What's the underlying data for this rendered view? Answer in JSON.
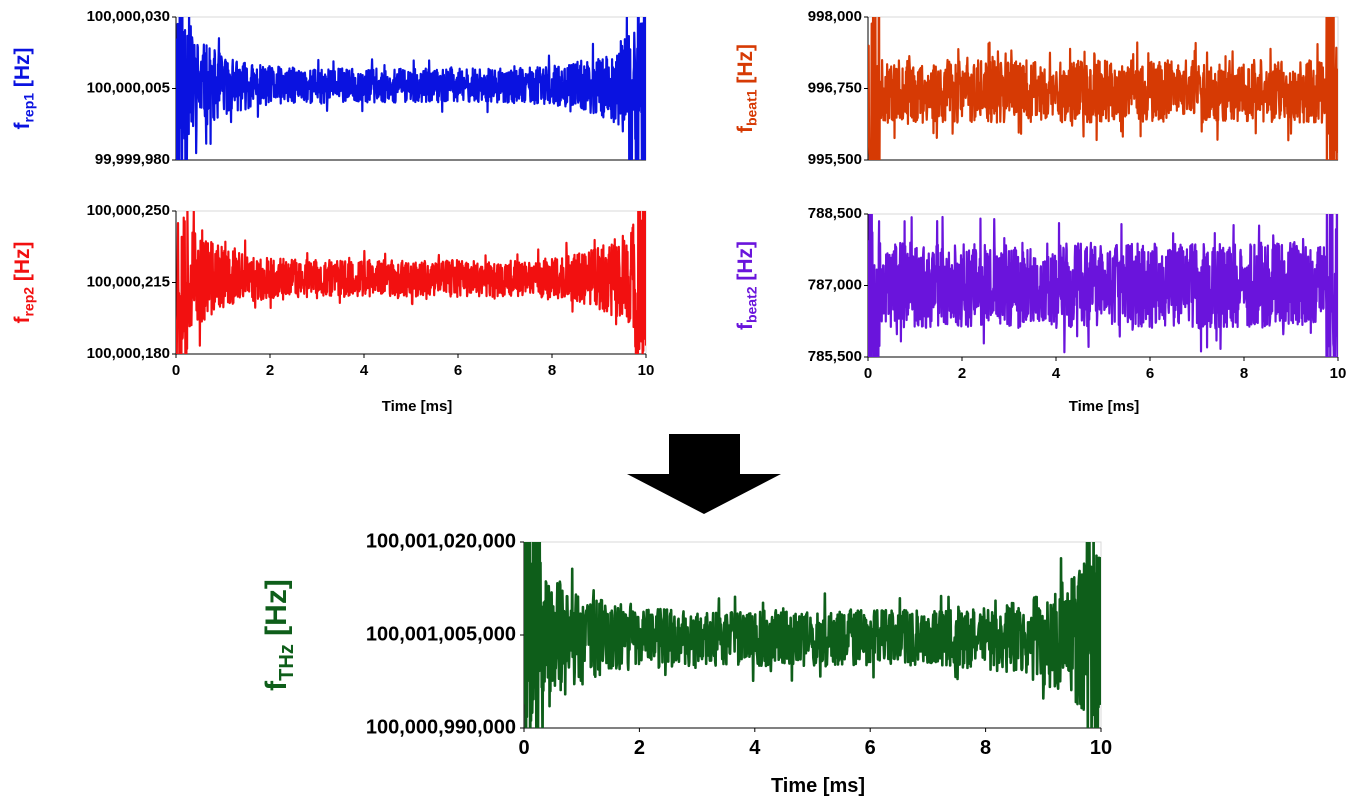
{
  "figure": {
    "arrow_color": "#000000"
  },
  "chart_data": [
    {
      "id": "frep1",
      "type": "line",
      "xlabel": "",
      "ylabel": {
        "main": "f",
        "sub": "rep1",
        "unit": " [Hz]"
      },
      "color": "#0a12e0",
      "xlim": [
        0,
        10
      ],
      "ylim": [
        99999980,
        100000030
      ],
      "y_ticks": [
        99999980,
        100000005,
        100000030
      ],
      "y_tick_labels": [
        "99,999,980",
        "100,000,005",
        "100,000,030"
      ],
      "x_tick_labels": [],
      "center": 100000006,
      "noise_edge": 25,
      "noise_mid": 6,
      "seed": 11
    },
    {
      "id": "fbeat1",
      "type": "line",
      "xlabel": "",
      "ylabel": {
        "main": "f",
        "sub": "beat1",
        "unit": " [Hz]"
      },
      "color": "#d63a04",
      "xlim": [
        0,
        10
      ],
      "ylim": [
        995500,
        998000
      ],
      "y_ticks": [
        995500,
        996750,
        998000
      ],
      "y_tick_labels": [
        "995,500",
        "996,750",
        "998,000"
      ],
      "x_tick_labels": [],
      "center": 996700,
      "noise_edge": 550,
      "noise_mid": 550,
      "seed": 23
    },
    {
      "id": "frep2",
      "type": "line",
      "xlabel": "Time [ms]",
      "ylabel": {
        "main": "f",
        "sub": "rep2",
        "unit": " [Hz]"
      },
      "color": "#f21010",
      "xlim": [
        0,
        10
      ],
      "ylim": [
        100000180,
        100000250
      ],
      "y_ticks": [
        100000180,
        100000215,
        100000250
      ],
      "y_tick_labels": [
        "100,000,180",
        "100,000,215",
        "100,000,250"
      ],
      "x_tick_labels": [
        "0",
        "2",
        "4",
        "6",
        "8",
        "10"
      ],
      "center": 100000217,
      "noise_edge": 35,
      "noise_mid": 9,
      "seed": 37
    },
    {
      "id": "fbeat2",
      "type": "line",
      "xlabel": "Time [ms]",
      "ylabel": {
        "main": "f",
        "sub": "beat2",
        "unit": " [Hz]"
      },
      "color": "#6a14dc",
      "xlim": [
        0,
        10
      ],
      "ylim": [
        785500,
        788500
      ],
      "y_ticks": [
        785500,
        787000,
        788500
      ],
      "y_tick_labels": [
        "785,500",
        "787,000",
        "788,500"
      ],
      "x_tick_labels": [
        "0",
        "2",
        "4",
        "6",
        "8",
        "10"
      ],
      "center": 787000,
      "noise_edge": 900,
      "noise_mid": 900,
      "seed": 53
    },
    {
      "id": "fthz",
      "type": "line",
      "xlabel": "Time [ms]",
      "ylabel": {
        "main": "f",
        "sub": "THz",
        "unit": " [Hz]"
      },
      "color": "#0e5e1a",
      "xlim": [
        0,
        10
      ],
      "ylim": [
        100000990000,
        100001020000
      ],
      "y_ticks": [
        100000990000,
        100001005000,
        100001020000
      ],
      "y_tick_labels": [
        "100,000,990,000",
        "100,001,005,000",
        "100,001,020,000"
      ],
      "x_tick_labels": [
        "0",
        "2",
        "4",
        "6",
        "8",
        "10"
      ],
      "center": 100001004500,
      "noise_edge": 16000,
      "noise_mid": 4500,
      "seed": 71
    }
  ]
}
